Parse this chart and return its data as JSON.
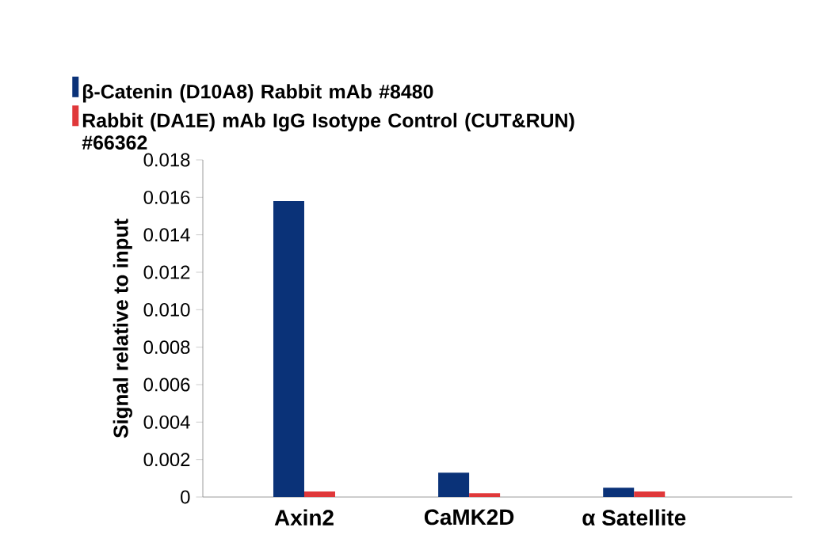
{
  "chart_data": {
    "type": "bar",
    "ylabel": "Signal relative to input",
    "categories": [
      "Axin2",
      "CaMK2D",
      "α Satellite"
    ],
    "series": [
      {
        "name": "β-Catenin (D10A8) Rabbit mAb #8480",
        "color": "#0a3278",
        "values": [
          0.0158,
          0.0013,
          0.0005
        ]
      },
      {
        "name": "Rabbit (DA1E) mAb IgG Isotype Control (CUT&RUN) #66362",
        "color": "#e0383a",
        "values": [
          0.0003,
          0.0002,
          0.0003
        ]
      }
    ],
    "ylim": [
      0,
      0.018
    ],
    "yticks": [
      0,
      0.002,
      0.004,
      0.006,
      0.008,
      {
        "value": 0.01,
        "label": "0.010"
      },
      0.012,
      0.014,
      0.016,
      0.018
    ],
    "grid": false,
    "legend": "top"
  }
}
